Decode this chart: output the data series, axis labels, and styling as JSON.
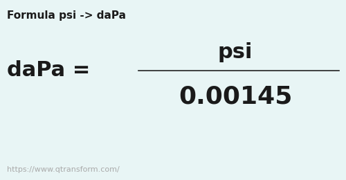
{
  "title": "Formula psi -> daPa",
  "unit_from": "psi",
  "equals_label": "daPa =",
  "value": "0.00145",
  "url": "https://www.qtransform.com/",
  "bg_color": "#e8f5f5",
  "title_fontsize": 11,
  "unit_fontsize": 22,
  "value_fontsize": 26,
  "url_fontsize": 8,
  "line_color": "#222222",
  "text_color": "#1a1a1a",
  "url_color": "#aaaaaa"
}
